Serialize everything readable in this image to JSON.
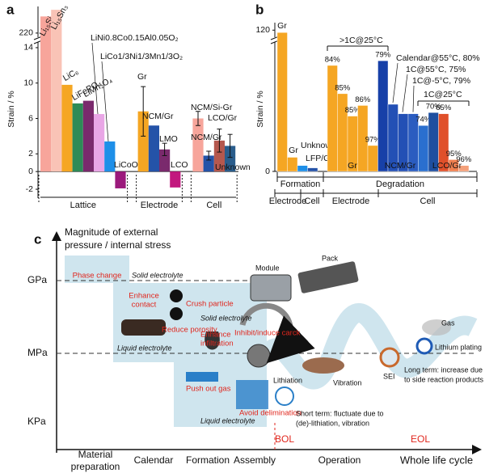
{
  "chart_data": [
    {
      "type": "bar",
      "panel": "a",
      "y_label": "Strain / %",
      "categories": [
        "Li₁₅Si₄",
        "Li₁₅Sn₃",
        "LiC₆",
        "LiFePO₄",
        "LiMn₂O₄",
        "LiNi0.8Co0.15Al0.05O₂",
        "LiCo1/3Ni1/3Mn1/3O₂",
        "LiCoO₂",
        "Gr",
        "NCM/Gr",
        "LMO",
        "LCO",
        "NCM/Si-Gr",
        "NCM/Gr",
        "LCO/Gr",
        "Unknown"
      ],
      "values": [
        270,
        290,
        9.8,
        7.7,
        8.0,
        6.5,
        3.4,
        -1.9,
        6.8,
        5.2,
        2.5,
        -1.8,
        6.0,
        1.8,
        3.5,
        2.9
      ],
      "errors": [
        null,
        null,
        null,
        null,
        null,
        null,
        null,
        null,
        2.8,
        null,
        0.7,
        null,
        0.8,
        0.5,
        1.3,
        1.3
      ],
      "colors": [
        "#f7a59b",
        "#f9c3b6",
        "#f5a623",
        "#2e8b57",
        "#7a2a6d",
        "#e9a6e6",
        "#1e8fe8",
        "#9b1a7c",
        "#f5a623",
        "#2453a8",
        "#7a2a6d",
        "#c2187e",
        "#f7a59b",
        "#2453a8",
        "#b5584e",
        "#2a5d8c"
      ],
      "groups": [
        "Lattice",
        "Electrode",
        "Cell"
      ],
      "ylim": [
        -3,
        15
      ],
      "ylim_upper": [
        210,
        300
      ],
      "axis_break": true,
      "yticks": [
        -2,
        0,
        2,
        6,
        10,
        14,
        220
      ]
    },
    {
      "type": "bar",
      "panel": "b",
      "y_label": "Strain / %",
      "categories": [
        "Gr",
        "Gr",
        "Unknown",
        "LFP/Gr",
        null,
        null,
        null,
        null,
        null,
        null,
        null,
        null,
        null,
        null,
        null,
        null,
        null,
        null
      ],
      "values": [
        118,
        12,
        5,
        3,
        90,
        66,
        47,
        56,
        22,
        94,
        57,
        49,
        49,
        39,
        50,
        49,
        10,
        5
      ],
      "notes": [
        null,
        null,
        null,
        null,
        "84%",
        "85%",
        "85%",
        "86%",
        "97%",
        "79%",
        null,
        null,
        null,
        "74%",
        "70%",
        "65%",
        "95%",
        "96%"
      ],
      "colors": [
        "#f5a623",
        "#f5a623",
        "#1e8fe8",
        "#2453a8",
        "#f5a623",
        "#f5a623",
        "#f5a623",
        "#f5a623",
        "#f5a623",
        "#1740a8",
        "#2350b5",
        "#2350b5",
        "#2a5cc0",
        "#2a6fcf",
        "#1e4fa0",
        "#e0502a",
        "#f08050",
        "#f4a07a"
      ],
      "annotations": [
        ">1C@25°C",
        "Calendar@55°C, 80%",
        "1C@55°C, 75%",
        "1C@-5°C, 79%",
        "1C@25°C"
      ],
      "group_labels": [
        "Gr",
        "NCM/Gr",
        "LCO/Gr"
      ],
      "groups": [
        "Formation",
        "Degradation"
      ],
      "subgroups": [
        "Electrode",
        "Cell",
        "Electrode",
        "Cell"
      ],
      "ylim": [
        0,
        125
      ],
      "axis_break": true,
      "yticks": [
        0,
        120
      ]
    }
  ],
  "diagram": {
    "panel": "c",
    "y_title": [
      "Magnitude of external",
      "pressure / internal stress"
    ],
    "levels": [
      "GPa",
      "MPa",
      "KPa"
    ],
    "stages": [
      [
        "Material",
        "preparation"
      ],
      "Calendar",
      "Formation",
      "Assembly",
      "Operation"
    ],
    "x_title": "Whole life cycle",
    "milestones": [
      "BOL",
      "EOL"
    ],
    "labels": {
      "phase_change": "Phase change",
      "solid_1": "Solid electrolyte",
      "enhance_contact": [
        "Enhance",
        "contact"
      ],
      "crush": "Crush particle",
      "reduce": "Reduce porosity",
      "liquid_1": "Liquid electrolyte",
      "solid_2": "Solid electrolyte",
      "infiltration": [
        "Enhance",
        "infiltration"
      ],
      "crack": "Inhibit/induce carck",
      "gas_out": "Push out gas",
      "liquid_2": "Liquid electrolyte",
      "delam": "Avoid delimination",
      "module": "Module",
      "pack": "Pack",
      "vibration": "Vibration",
      "lithiation": "Lithiation",
      "sei": "SEI",
      "gas": "Gas",
      "plating": "Lithium plating",
      "long_term": [
        "Long term: increase due",
        "to side reaction products"
      ],
      "short_term": [
        "Short term: fluctuate due to",
        "(de)-lithiation, vibration"
      ]
    }
  }
}
